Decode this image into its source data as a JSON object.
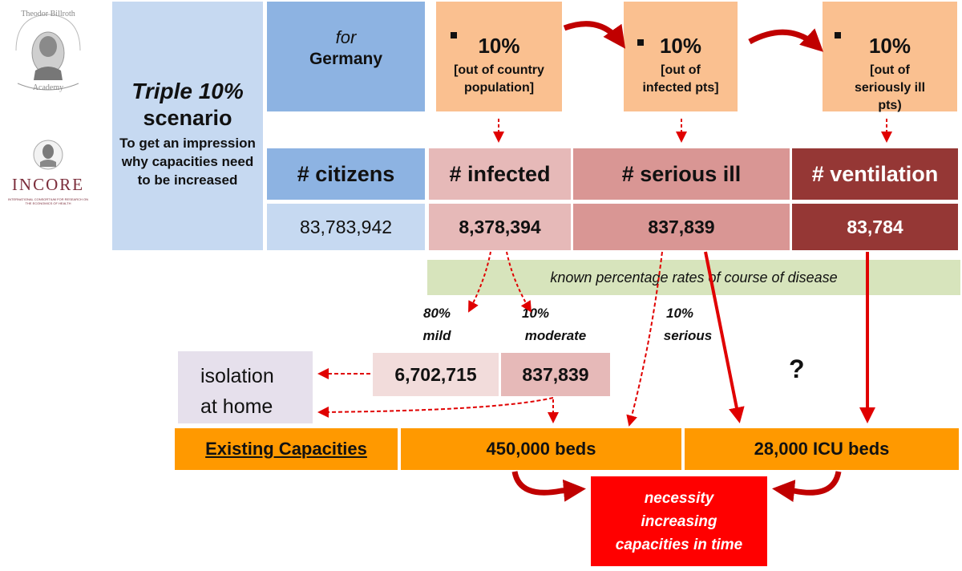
{
  "colors": {
    "light_blue": "#c6d9f1",
    "mid_blue": "#8db3e2",
    "peach": "#fac090",
    "pink_light": "#e6b9b8",
    "pink_mid": "#d99694",
    "dark_red": "#953735",
    "green_band": "#d7e4bc",
    "orange": "#ff9900",
    "red_box": "#ff0000",
    "lavender": "#e6e0ec",
    "arrow_red": "#cc0000"
  },
  "logos": {
    "billroth": {
      "line1": "Theodor Billroth",
      "line2": "Academy"
    },
    "incore": {
      "name": "INCORE",
      "subtitle": "INTERNATIONAL CONSORTIUM FOR RESEARCH ON THE ECONOMICS OF HEALTH"
    }
  },
  "scenario": {
    "title": "Triple 10%",
    "subtitle": "scenario",
    "description": "To get an impression why capacities need to be increased"
  },
  "country": {
    "prefix": "for",
    "name": "Germany"
  },
  "percent_boxes": [
    {
      "value": "10%",
      "label": "[out of country population]"
    },
    {
      "value": "10%",
      "label": "[out of infected pts]"
    },
    {
      "value": "10%",
      "label": "[out of seriously ill pts)"
    }
  ],
  "headers": {
    "citizens": "# citizens",
    "infected": "# infected",
    "serious": "# serious ill",
    "ventilation": "# ventilation"
  },
  "numbers": {
    "citizens": "83,783,942",
    "infected": "8,378,394",
    "serious": "837,839",
    "ventilation": "83,784"
  },
  "band_text": "known percentage rates of course of disease",
  "rates": {
    "mild": {
      "pct": "80%",
      "label": "mild"
    },
    "moderate": {
      "pct": "10%",
      "label": "moderate"
    },
    "serious": {
      "pct": "10%",
      "label": "serious"
    }
  },
  "isolation": {
    "line1": "isolation",
    "line2": "at home"
  },
  "split_values": {
    "mild": "6,702,715",
    "moderate": "837,839"
  },
  "question_mark": "?",
  "capacities": {
    "label": "Existing Capacities",
    "beds": "450,000 beds",
    "icu": "28,000 ICU beds"
  },
  "necessity": {
    "line1": "necessity",
    "line2": "increasing",
    "line3": "capacities in time"
  }
}
